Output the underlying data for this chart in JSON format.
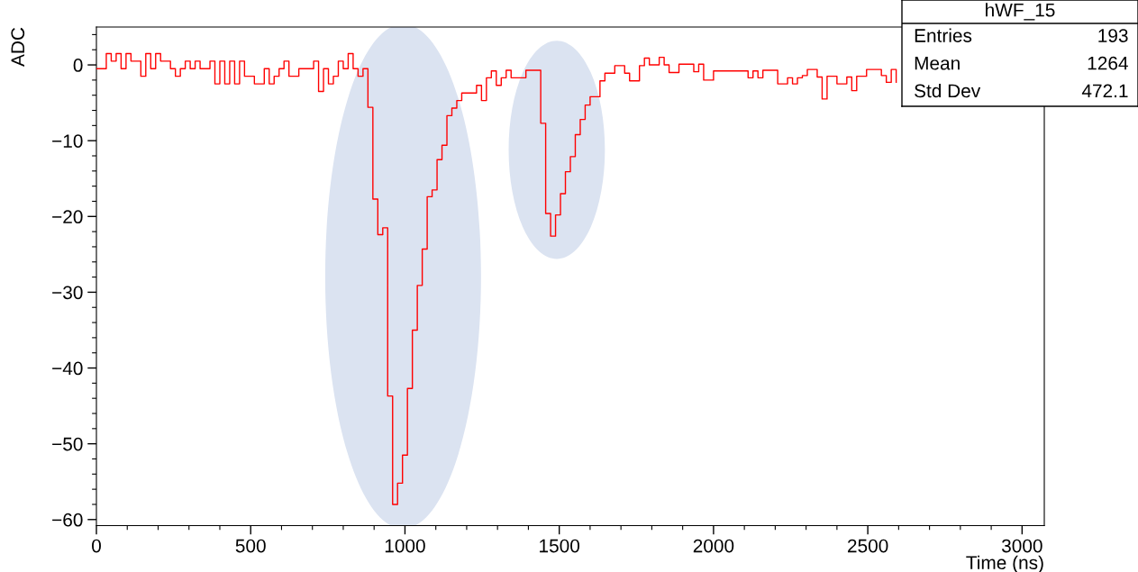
{
  "chart_data": {
    "type": "step",
    "xlabel": "Time (ns)",
    "ylabel": "ADC",
    "xlim": [
      0,
      3072
    ],
    "ylim": [
      -60.8,
      5
    ],
    "xticks": [
      0,
      500,
      1000,
      1500,
      2000,
      2500,
      3000
    ],
    "yticks": [
      {
        "value": -60,
        "label": "−60"
      },
      {
        "value": -50,
        "label": "−50"
      },
      {
        "value": -40,
        "label": "−40"
      },
      {
        "value": -30,
        "label": "−30"
      },
      {
        "value": -20,
        "label": "−20"
      },
      {
        "value": -10,
        "label": "−10"
      },
      0
    ],
    "grid": false,
    "annotations": [
      "hWF_15",
      "Entries",
      "193",
      "Mean",
      "1264",
      "Std Dev",
      "472.1"
    ],
    "series": [
      {
        "color": "#ff0000",
        "x": [
          0,
          32,
          48,
          64,
          80,
          96,
          112,
          144,
          160,
          176,
          192,
          208,
          240,
          256,
          272,
          288,
          304,
          320,
          336,
          368,
          384,
          400,
          416,
          432,
          448,
          464,
          480,
          512,
          544,
          560,
          576,
          592,
          608,
          624,
          656,
          704,
          720,
          736,
          752,
          768,
          784,
          800,
          816,
          832,
          848,
          864,
          880,
          896,
          912,
          928,
          944,
          960,
          976,
          992,
          1008,
          1024,
          1040,
          1056,
          1072,
          1088,
          1104,
          1120,
          1136,
          1152,
          1168,
          1184,
          1232,
          1248,
          1264,
          1280,
          1296,
          1312,
          1328,
          1344,
          1392,
          1440,
          1456,
          1472,
          1488,
          1504,
          1520,
          1536,
          1552,
          1568,
          1584,
          1600,
          1632,
          1648,
          1680,
          1712,
          1728,
          1760,
          1776,
          1792,
          1824,
          1840,
          1856,
          1888,
          1936,
          1952,
          1968,
          2000,
          2112,
          2128,
          2144,
          2160,
          2208,
          2240,
          2256,
          2272,
          2288,
          2304,
          2336,
          2352,
          2368,
          2400,
          2432,
          2448,
          2464,
          2496,
          2544,
          2560,
          2576,
          2592
        ],
        "values": [
          -0.5,
          1.5,
          0.5,
          1.5,
          -0.5,
          1.5,
          0.5,
          -1.5,
          1.5,
          -0.5,
          1.5,
          0.5,
          -0.5,
          -1.5,
          -0.5,
          0.5,
          -0.5,
          0.5,
          -0.5,
          0.5,
          -2.5,
          0.5,
          -2.5,
          0.5,
          -2.5,
          0.5,
          -1.5,
          -2.5,
          -0.5,
          -2.5,
          -1.5,
          -0.5,
          0.5,
          -1.5,
          -0.5,
          0.5,
          -3.5,
          -0.5,
          -2.5,
          -1.5,
          0.5,
          -0.5,
          1.5,
          -0.5,
          -1.5,
          -0.5,
          -5.6,
          -17.7,
          -22.4,
          -21.5,
          -43.7,
          -58,
          -55.2,
          -51.5,
          -42.7,
          -35,
          -29.1,
          -24.3,
          -17.4,
          -16.5,
          -12.5,
          -10.6,
          -6.7,
          -5.7,
          -4.7,
          -3.7,
          -2.7,
          -4.7,
          -1.7,
          -0.8,
          -2.7,
          -1.7,
          -0.7,
          -1.7,
          -0.7,
          -7.7,
          -19.6,
          -22.6,
          -19.8,
          -17,
          -14.1,
          -12.1,
          -9.2,
          -7.2,
          -5.3,
          -4.2,
          -2.1,
          -1.1,
          -0.1,
          -1.1,
          -2.1,
          -0.1,
          0.9,
          0,
          1,
          0,
          -1,
          0.1,
          -0.9,
          0.1,
          -2,
          -0.8,
          -1.7,
          -0.8,
          -1.7,
          -0.7,
          -2.5,
          -1.7,
          -2.5,
          -1.7,
          -1.4,
          -0.6,
          -1.6,
          -4.5,
          -1.5,
          -2.5,
          -1.6,
          -3.4,
          -1.5,
          -0.6,
          -1.4,
          -2.3,
          -0.6,
          -2.3
        ]
      }
    ]
  }
}
